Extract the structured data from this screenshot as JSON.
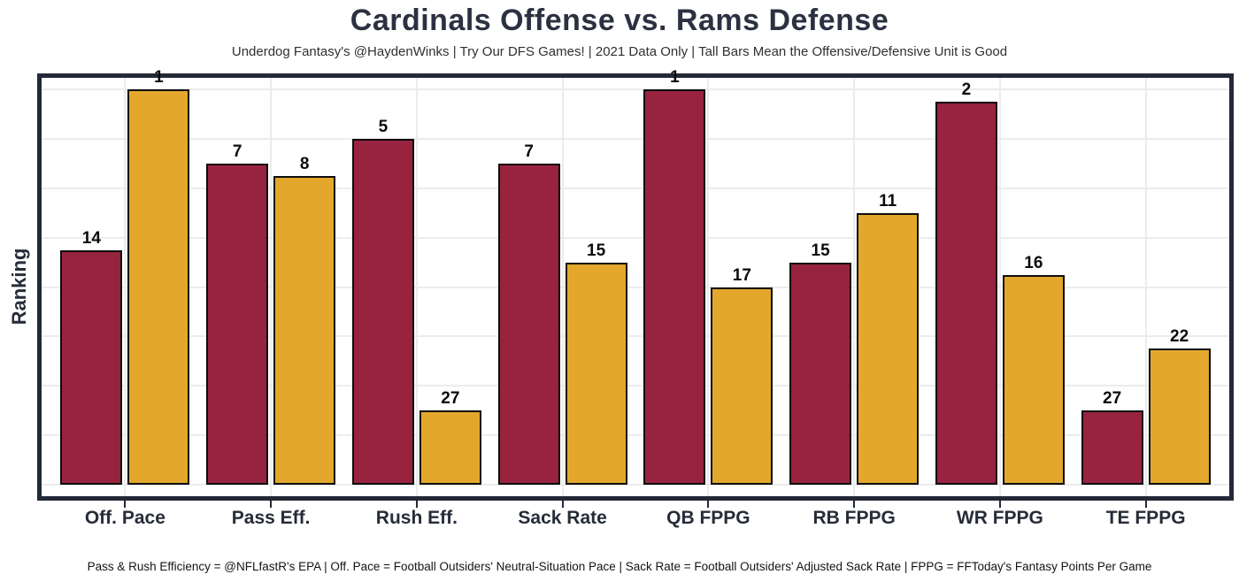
{
  "chart_data": {
    "type": "bar",
    "title": "Cardinals Offense vs. Rams Defense",
    "subtitle": "Underdog Fantasy's @HaydenWinks | Try Our DFS Games! | 2021 Data Only | Tall Bars Mean the Offensive/Defensive Unit is Good",
    "footnote": "Pass & Rush Efficiency = @NFLfastR's EPA | Off. Pace = Football Outsiders' Neutral-Situation Pace | Sack Rate = Football Outsiders' Adjusted Sack Rate | FPPG = FFToday's Fantasy Points Per Game",
    "ylabel": "Ranking",
    "xlabel": "",
    "categories": [
      "Off. Pace",
      "Pass Eff.",
      "Rush Eff.",
      "Sack Rate",
      "QB FPPG",
      "RB FPPG",
      "WR FPPG",
      "TE FPPG"
    ],
    "series": [
      {
        "name": "Cardinals Offense",
        "color": "#97233F",
        "values": [
          14,
          7,
          5,
          7,
          1,
          15,
          2,
          27
        ]
      },
      {
        "name": "Rams Defense",
        "color": "#E3A82B",
        "values": [
          1,
          8,
          27,
          15,
          17,
          11,
          16,
          22
        ]
      }
    ],
    "value_note": "values are NFL rankings (1 = best); bar height drawn as 33 minus rank, so taller bars mean better units",
    "ylim": [
      0,
      32
    ],
    "gridline_every_ranks": 4,
    "grid": true,
    "legend_position": "none",
    "bar_labels": true
  },
  "colors": {
    "cardinals_red": "#97233F",
    "rams_gold": "#E3A82B",
    "frame": "#232936",
    "gridline": "#ECECEC",
    "bar_outline": "#0D0D0D",
    "title_text": "#2B3140",
    "axis_text": "#262C38",
    "footnote_text": "#141414"
  }
}
